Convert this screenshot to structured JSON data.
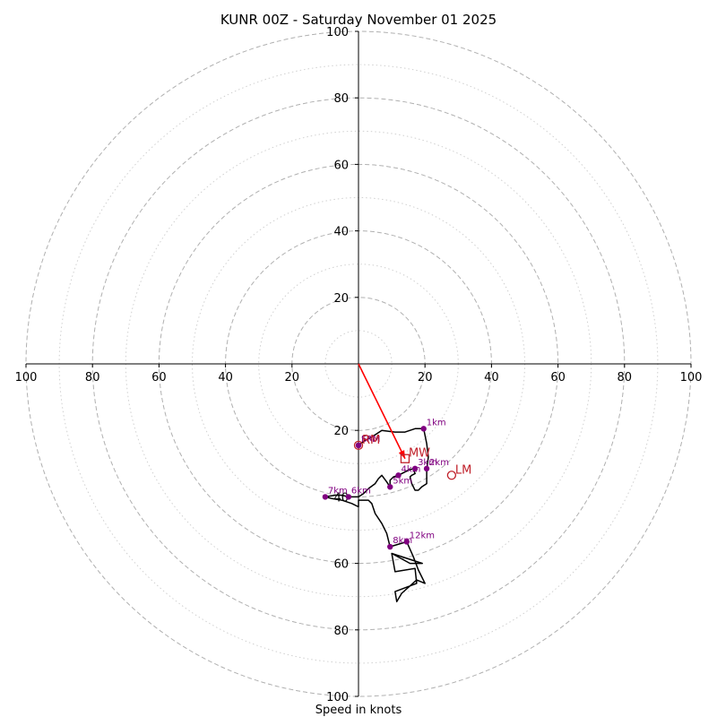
{
  "chart_data": {
    "type": "hodograph",
    "title": "KUNR 00Z - Saturday November 01 2025",
    "xlabel": "Speed in knots",
    "range": [
      -100,
      100
    ],
    "ring_major": [
      20,
      40,
      60,
      80,
      100
    ],
    "ring_minor": [
      10,
      30,
      50,
      70,
      90
    ],
    "tick_labels": {
      "left": [
        "100",
        "80",
        "60",
        "40",
        "20"
      ],
      "right": [
        "20",
        "40",
        "60",
        "80",
        "100"
      ],
      "top": [
        "100",
        "80",
        "60",
        "40",
        "20"
      ],
      "bottom": [
        "20",
        "40",
        "60",
        "80",
        "100"
      ]
    },
    "trace": [
      [
        0,
        -24.5
      ],
      [
        2,
        -23
      ],
      [
        4,
        -22
      ],
      [
        7,
        -20
      ],
      [
        11,
        -20.5
      ],
      [
        14,
        -20.5
      ],
      [
        17,
        -19.5
      ],
      [
        19.6,
        -19.5
      ],
      [
        20.5,
        -24
      ],
      [
        21,
        -28
      ],
      [
        20.5,
        -32
      ],
      [
        20.5,
        -36
      ],
      [
        19,
        -37
      ],
      [
        18,
        -38
      ],
      [
        17,
        -38
      ],
      [
        16,
        -36
      ],
      [
        15.5,
        -34
      ],
      [
        16,
        -33.5
      ],
      [
        17,
        -33
      ],
      [
        16.5,
        -31.5
      ],
      [
        15,
        -32
      ],
      [
        14,
        -32.5
      ],
      [
        12,
        -33.5
      ],
      [
        10.5,
        -34
      ],
      [
        9.5,
        -35
      ],
      [
        9.5,
        -37
      ],
      [
        8.5,
        -35.5
      ],
      [
        7,
        -33.5
      ],
      [
        6,
        -34.5
      ],
      [
        5,
        -36
      ],
      [
        3,
        -37.5
      ],
      [
        1.5,
        -39
      ],
      [
        0,
        -40
      ],
      [
        -3,
        -40
      ],
      [
        -5,
        -39.5
      ],
      [
        -7,
        -39.5
      ],
      [
        -10,
        -40
      ],
      [
        -8,
        -40.5
      ],
      [
        -5,
        -41
      ],
      [
        -2,
        -42
      ],
      [
        0,
        -43
      ],
      [
        0,
        -42
      ],
      [
        0,
        -41
      ],
      [
        1,
        -41
      ],
      [
        3,
        -41
      ],
      [
        4,
        -42
      ],
      [
        5,
        -45
      ],
      [
        7,
        -48
      ],
      [
        8.5,
        -51
      ],
      [
        9.5,
        -55
      ],
      [
        14.5,
        -53.5
      ],
      [
        16.5,
        -58
      ],
      [
        18,
        -62
      ],
      [
        20,
        -66
      ],
      [
        17.5,
        -65
      ],
      [
        13,
        -69
      ],
      [
        11.5,
        -71.5
      ],
      [
        11,
        -68.5
      ],
      [
        17.5,
        -66
      ],
      [
        17,
        -61.5
      ],
      [
        11,
        -62.5
      ],
      [
        10,
        -57
      ],
      [
        19.2,
        -60
      ],
      [
        15.5,
        -60
      ],
      [
        10,
        -57
      ]
    ],
    "height_markers": [
      {
        "label": "1km",
        "u": 19.6,
        "v": -19.5
      },
      {
        "label": "2km",
        "u": 20.5,
        "v": -31.5
      },
      {
        "label": "3km",
        "u": 17,
        "v": -31.5
      },
      {
        "label": "4km",
        "u": 12,
        "v": -33.5
      },
      {
        "label": "5km",
        "u": 9.5,
        "v": -37
      },
      {
        "label": "6km",
        "u": -3,
        "v": -40
      },
      {
        "label": "7km",
        "u": -10,
        "v": -40
      },
      {
        "label": "8km",
        "u": 9.5,
        "v": -55
      },
      {
        "label": "12km",
        "u": 14.5,
        "v": -53.5
      },
      {
        "label": "FRM",
        "u": 0,
        "v": -24.5
      },
      {
        "label": "SM",
        "u": 0,
        "v": -24.5
      }
    ],
    "storm_points": [
      {
        "label": "RM",
        "u": 0,
        "v": -24.5,
        "marker": "circle"
      },
      {
        "label": "MW",
        "u": 14,
        "v": -28.5,
        "marker": "square"
      },
      {
        "label": "LM",
        "u": 28,
        "v": -33.5,
        "marker": "circle"
      }
    ],
    "shear_vector": {
      "from": [
        0,
        0
      ],
      "to": [
        14,
        -28.5
      ]
    },
    "colors": {
      "trace": "#000000",
      "markers": "#800080",
      "storm": "#c0202a",
      "shear": "#ff0000",
      "grid": "#b0b0b0"
    }
  }
}
